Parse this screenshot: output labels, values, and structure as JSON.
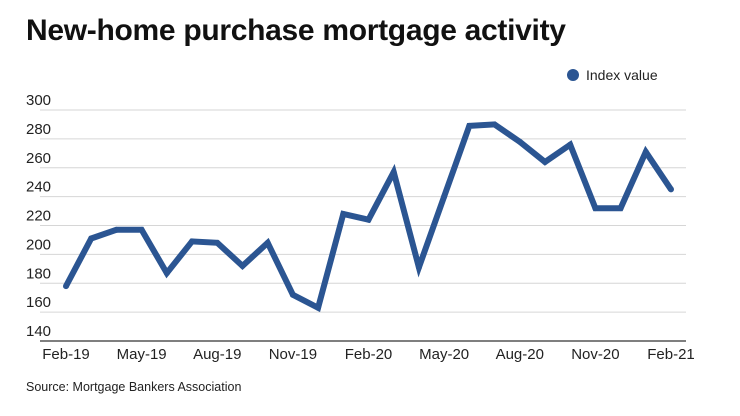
{
  "title": "New-home purchase mortgage activity",
  "source": "Source: Mortgage Bankers Association",
  "chart_data": {
    "type": "line",
    "title": "New-home purchase mortgage activity",
    "xlabel": "",
    "ylabel": "",
    "ylim": [
      140,
      300
    ],
    "yticks": [
      140,
      160,
      180,
      200,
      220,
      240,
      260,
      280,
      300
    ],
    "grid": true,
    "legend_position": "top-right",
    "x": [
      "Feb-19",
      "Mar-19",
      "Apr-19",
      "May-19",
      "Jun-19",
      "Jul-19",
      "Aug-19",
      "Sep-19",
      "Oct-19",
      "Nov-19",
      "Dec-19",
      "Jan-20",
      "Feb-20",
      "Mar-20",
      "Apr-20",
      "May-20",
      "Jun-20",
      "Jul-20",
      "Aug-20",
      "Sep-20",
      "Oct-20",
      "Nov-20",
      "Dec-20",
      "Jan-21",
      "Feb-21"
    ],
    "xtick_labels": [
      "Feb-19",
      "May-19",
      "Aug-19",
      "Nov-19",
      "Feb-20",
      "May-20",
      "Aug-20",
      "Nov-20",
      "Feb-21"
    ],
    "series": [
      {
        "name": "Index value",
        "color": "#2b5592",
        "values": [
          178,
          211,
          217,
          217,
          187,
          209,
          208,
          192,
          208,
          172,
          163,
          228,
          224,
          257,
          191,
          240,
          289,
          290,
          278,
          264,
          276,
          232,
          232,
          271,
          245
        ]
      }
    ]
  }
}
